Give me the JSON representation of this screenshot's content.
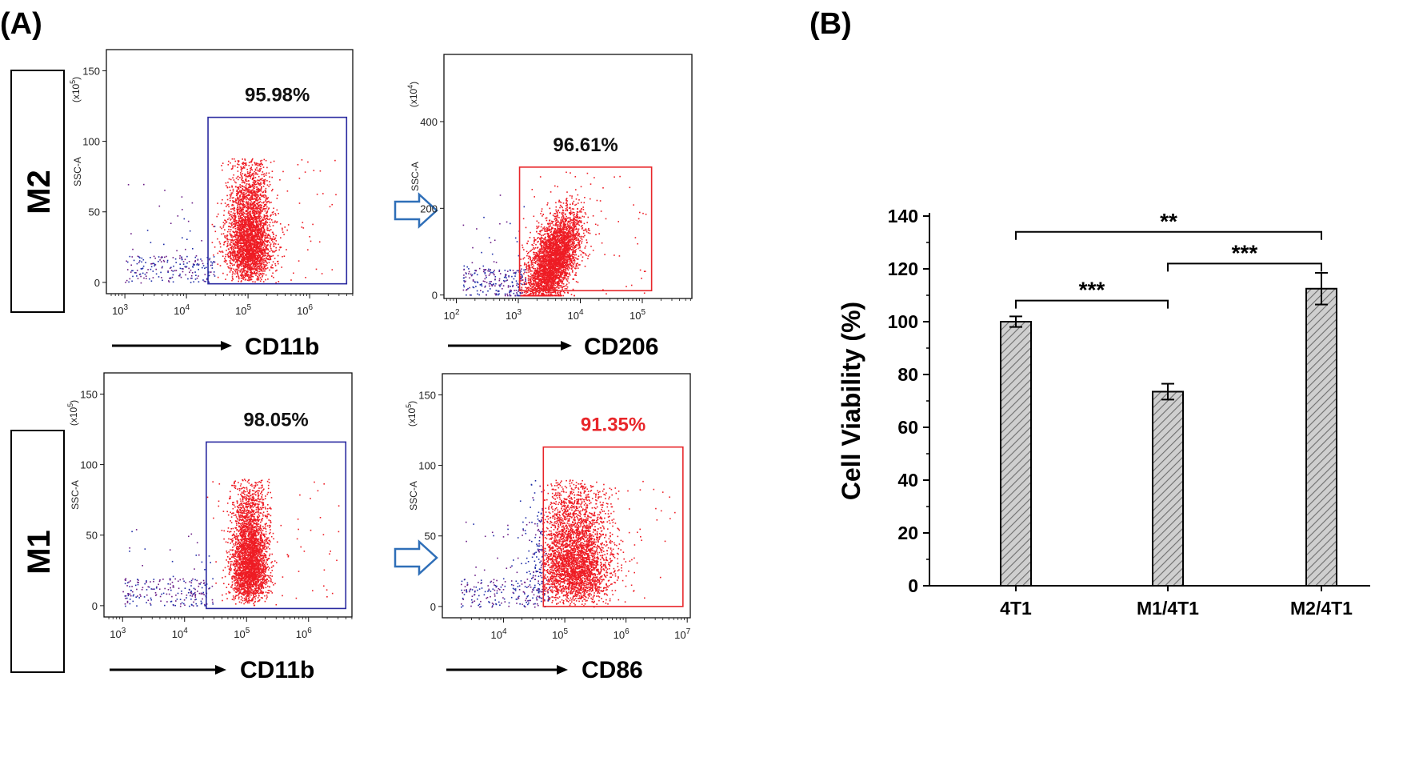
{
  "panel_labels": {
    "a": "(A)",
    "b": "(B)"
  },
  "row_labels": {
    "top": "M2",
    "bottom": "M1"
  },
  "colors": {
    "gate_blue": "#2a2aa0",
    "gate_red": "#e8262a",
    "dot_red": "#ee1c24",
    "dot_blue": "#1f2ea8",
    "dot_purple": "#6a1d86",
    "bar_fill": "#c9c9c9",
    "arrow_blue": "#2f6fb8"
  },
  "chart_data": [
    {
      "id": "m2_cd11b",
      "type": "scatter",
      "xlabel": "CD11b",
      "ylabel": "SSC-A",
      "yexp_mult": "(x10",
      "yexp_pow": "5",
      "yexp_close": ")",
      "xscale": "log",
      "xlim_log": [
        2.7,
        6.7
      ],
      "ylim": [
        -8,
        165
      ],
      "xticks": [
        {
          "mantissa": "10",
          "exp": "3",
          "v": 3
        },
        {
          "mantissa": "10",
          "exp": "4",
          "v": 4
        },
        {
          "mantissa": "10",
          "exp": "5",
          "v": 5
        },
        {
          "mantissa": "10",
          "exp": "6",
          "v": 6
        }
      ],
      "yticks": [
        {
          "label": "0",
          "v": 0
        },
        {
          "label": "50",
          "v": 50
        },
        {
          "label": "100",
          "v": 100
        },
        {
          "label": "150",
          "v": 150
        }
      ],
      "gate": {
        "label": "95.98%",
        "color": "gate_blue",
        "xlog": [
          4.35,
          6.6
        ],
        "y": [
          -1,
          117
        ]
      },
      "cloud": {
        "center_log": 5.02,
        "spread_log": 0.18,
        "ymax": 88,
        "count": 3200
      }
    },
    {
      "id": "m2_cd206",
      "type": "scatter",
      "xlabel": "CD206",
      "ylabel": "SSC-A",
      "yexp_mult": "(x10",
      "yexp_pow": "4",
      "yexp_close": ")",
      "xscale": "log",
      "xlim_log": [
        1.8,
        5.8
      ],
      "ylim": [
        -8,
        555
      ],
      "xticks": [
        {
          "mantissa": "10",
          "exp": "2",
          "v": 2
        },
        {
          "mantissa": "10",
          "exp": "3",
          "v": 3
        },
        {
          "mantissa": "10",
          "exp": "4",
          "v": 4
        },
        {
          "mantissa": "10",
          "exp": "5",
          "v": 5
        }
      ],
      "yticks": [
        {
          "label": "0",
          "v": 0
        },
        {
          "label": "200",
          "v": 200
        },
        {
          "label": "400",
          "v": 400
        }
      ],
      "gate": {
        "label": "96.61%",
        "color": "gate_red",
        "xlog": [
          3.02,
          5.15
        ],
        "y": [
          10,
          295
        ]
      },
      "cloud": {
        "center_log": 3.55,
        "spread_log": 0.22,
        "ymax": 285,
        "count": 3600
      }
    },
    {
      "id": "m1_cd11b",
      "type": "scatter",
      "xlabel": "CD11b",
      "ylabel": "SSC-A",
      "yexp_mult": "(x10",
      "yexp_pow": "5",
      "yexp_close": ")",
      "xscale": "log",
      "xlim_log": [
        2.7,
        6.7
      ],
      "ylim": [
        -8,
        165
      ],
      "xticks": [
        {
          "mantissa": "10",
          "exp": "3",
          "v": 3
        },
        {
          "mantissa": "10",
          "exp": "4",
          "v": 4
        },
        {
          "mantissa": "10",
          "exp": "5",
          "v": 5
        },
        {
          "mantissa": "10",
          "exp": "6",
          "v": 6
        }
      ],
      "yticks": [
        {
          "label": "0",
          "v": 0
        },
        {
          "label": "50",
          "v": 50
        },
        {
          "label": "100",
          "v": 100
        },
        {
          "label": "150",
          "v": 150
        }
      ],
      "gate": {
        "label": "98.05%",
        "color": "gate_blue",
        "xlog": [
          4.35,
          6.6
        ],
        "y": [
          -2,
          116
        ]
      },
      "cloud": {
        "center_log": 5.05,
        "spread_log": 0.15,
        "ymax": 90,
        "count": 3000
      }
    },
    {
      "id": "m1_cd86",
      "type": "scatter",
      "xlabel": "CD86",
      "ylabel": "SSC-A",
      "yexp_mult": "(x10",
      "yexp_pow": "5",
      "yexp_close": ")",
      "xscale": "log",
      "xlim_log": [
        3.0,
        7.05
      ],
      "ylim": [
        -8,
        165
      ],
      "xticks": [
        {
          "mantissa": "10",
          "exp": "4",
          "v": 4
        },
        {
          "mantissa": "10",
          "exp": "5",
          "v": 5
        },
        {
          "mantissa": "10",
          "exp": "6",
          "v": 6
        },
        {
          "mantissa": "10",
          "exp": "7",
          "v": 7
        }
      ],
      "yticks": [
        {
          "label": "0",
          "v": 0
        },
        {
          "label": "50",
          "v": 50
        },
        {
          "label": "100",
          "v": 100
        },
        {
          "label": "150",
          "v": 150
        }
      ],
      "gate": {
        "label": "91.35%",
        "color": "gate_red",
        "xlog": [
          4.65,
          6.93
        ],
        "y": [
          0,
          113
        ]
      },
      "cloud": {
        "center_log": 5.15,
        "spread_log": 0.3,
        "ymax": 90,
        "count": 3400
      }
    },
    {
      "id": "viability",
      "type": "bar",
      "title": "",
      "xlabel": "",
      "ylabel": "Cell Viability (%)",
      "categories": [
        "4T1",
        "M1/4T1",
        "M2/4T1"
      ],
      "values": [
        100,
        73.5,
        112.5
      ],
      "errors": [
        2,
        3,
        6
      ],
      "ylim": [
        0,
        140
      ],
      "yticks": [
        0,
        20,
        40,
        60,
        80,
        100,
        120,
        140
      ],
      "significance": [
        {
          "from": 0,
          "to": 2,
          "label": "**",
          "y": 134
        },
        {
          "from": 1,
          "to": 2,
          "label": "***",
          "y": 122
        },
        {
          "from": 0,
          "to": 1,
          "label": "***",
          "y": 108
        }
      ]
    }
  ]
}
